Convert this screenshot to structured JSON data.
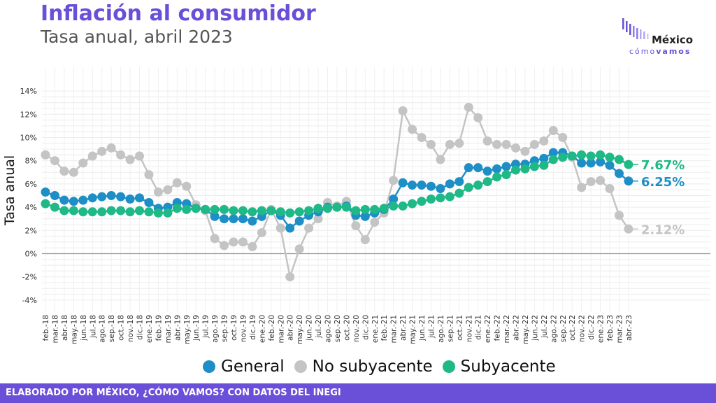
{
  "header": {
    "title": "Inflación al consumidor",
    "subtitle": "Tasa anual, abril 2023"
  },
  "logo": {
    "name": "México",
    "tag_light": "cómo",
    "tag_bold": "vamos",
    "color": "#6a4fd8"
  },
  "footer": {
    "text": "ELABORADO POR MÉXICO, ¿CÓMO VAMOS? CON DATOS DEL INEGI"
  },
  "chart_data": {
    "type": "line",
    "title": "Inflación al consumidor",
    "subtitle": "Tasa anual, abril 2023",
    "ylabel": "Tasa anual",
    "xlabel": "",
    "ylim": [
      -4,
      14
    ],
    "yticks": [
      -4,
      -2,
      0,
      2,
      4,
      6,
      8,
      10,
      12,
      14
    ],
    "ytick_labels": [
      "-4%",
      "-2%",
      "0%",
      "2%",
      "4%",
      "6%",
      "8%",
      "10%",
      "12%",
      "14%"
    ],
    "grid": true,
    "legend_position": "bottom",
    "categories": [
      "feb.-18",
      "mar.-18",
      "abr.-18",
      "may.-18",
      "jun.-18",
      "jul.-18",
      "ago.-18",
      "sep.-18",
      "oct.-18",
      "nov.-18",
      "dic.-18",
      "ene.-19",
      "feb.-19",
      "mar.-19",
      "abr.-19",
      "may.-19",
      "jun.-19",
      "jul.-19",
      "ago.-19",
      "sep.-19",
      "oct.-19",
      "nov.-19",
      "dic.-19",
      "ene.-20",
      "feb.-20",
      "mar.-20",
      "abr.-20",
      "may.-20",
      "jun.-20",
      "jul.-20",
      "ago.-20",
      "sep.-20",
      "oct.-20",
      "nov.-20",
      "dic.-20",
      "ene.-21",
      "feb.-21",
      "mar.-21",
      "abr.-21",
      "may.-21",
      "jun.-21",
      "jul.-21",
      "ago.-21",
      "sep.-21",
      "oct.-21",
      "nov.-21",
      "dic.-21",
      "ene.-22",
      "feb.-22",
      "mar.-22",
      "abr.-22",
      "may.-22",
      "jun.-22",
      "jul.-22",
      "ago.-22",
      "sep.-22",
      "oct.-22",
      "nov.-22",
      "dic.-22",
      "ene.-23",
      "feb.-23",
      "mar.-23",
      "abr.-23"
    ],
    "series": [
      {
        "name": "No subyacente",
        "color": "#c4c4c4",
        "end_label": "2.12%",
        "values": [
          8.5,
          8.0,
          7.1,
          7.0,
          7.8,
          8.4,
          8.8,
          9.1,
          8.5,
          8.1,
          8.4,
          6.8,
          5.3,
          5.5,
          6.1,
          5.8,
          4.2,
          3.7,
          1.3,
          0.7,
          1.0,
          1.0,
          0.6,
          1.8,
          3.8,
          2.2,
          -2.0,
          0.4,
          2.2,
          3.0,
          4.4,
          4.1,
          4.5,
          2.4,
          1.2,
          2.7,
          3.5,
          6.3,
          12.3,
          10.7,
          10.0,
          9.4,
          8.1,
          9.4,
          9.5,
          12.6,
          11.7,
          9.7,
          9.4,
          9.4,
          9.1,
          8.8,
          9.4,
          9.7,
          10.6,
          10.0,
          8.3,
          5.7,
          6.2,
          6.3,
          5.6,
          3.3,
          2.12
        ]
      },
      {
        "name": "General",
        "color": "#1d8fc6",
        "end_label": "6.25%",
        "values": [
          5.3,
          5.0,
          4.6,
          4.5,
          4.6,
          4.8,
          4.9,
          5.0,
          4.9,
          4.7,
          4.8,
          4.4,
          3.9,
          4.0,
          4.4,
          4.3,
          3.9,
          3.8,
          3.2,
          3.0,
          3.0,
          3.0,
          2.8,
          3.2,
          3.7,
          3.3,
          2.2,
          2.8,
          3.3,
          3.6,
          4.0,
          4.0,
          4.1,
          3.3,
          3.2,
          3.5,
          3.8,
          4.7,
          6.1,
          5.9,
          5.9,
          5.8,
          5.6,
          6.0,
          6.2,
          7.4,
          7.4,
          7.1,
          7.3,
          7.5,
          7.7,
          7.7,
          8.0,
          8.2,
          8.7,
          8.7,
          8.4,
          7.8,
          7.8,
          7.9,
          7.6,
          6.9,
          6.25
        ]
      },
      {
        "name": "Subyacente",
        "color": "#1fb887",
        "end_label": "7.67%",
        "values": [
          4.3,
          4.0,
          3.7,
          3.7,
          3.6,
          3.6,
          3.6,
          3.7,
          3.7,
          3.6,
          3.7,
          3.6,
          3.5,
          3.5,
          3.9,
          3.8,
          3.9,
          3.8,
          3.8,
          3.8,
          3.7,
          3.7,
          3.6,
          3.7,
          3.7,
          3.6,
          3.5,
          3.6,
          3.7,
          3.9,
          3.9,
          4.0,
          4.0,
          3.7,
          3.8,
          3.8,
          3.9,
          4.1,
          4.1,
          4.3,
          4.5,
          4.7,
          4.8,
          4.9,
          5.2,
          5.7,
          5.9,
          6.2,
          6.6,
          6.8,
          7.2,
          7.3,
          7.5,
          7.6,
          8.1,
          8.3,
          8.4,
          8.5,
          8.4,
          8.5,
          8.3,
          8.1,
          7.67
        ]
      }
    ],
    "legend": [
      "General",
      "No subyacente",
      "Subyacente"
    ]
  }
}
